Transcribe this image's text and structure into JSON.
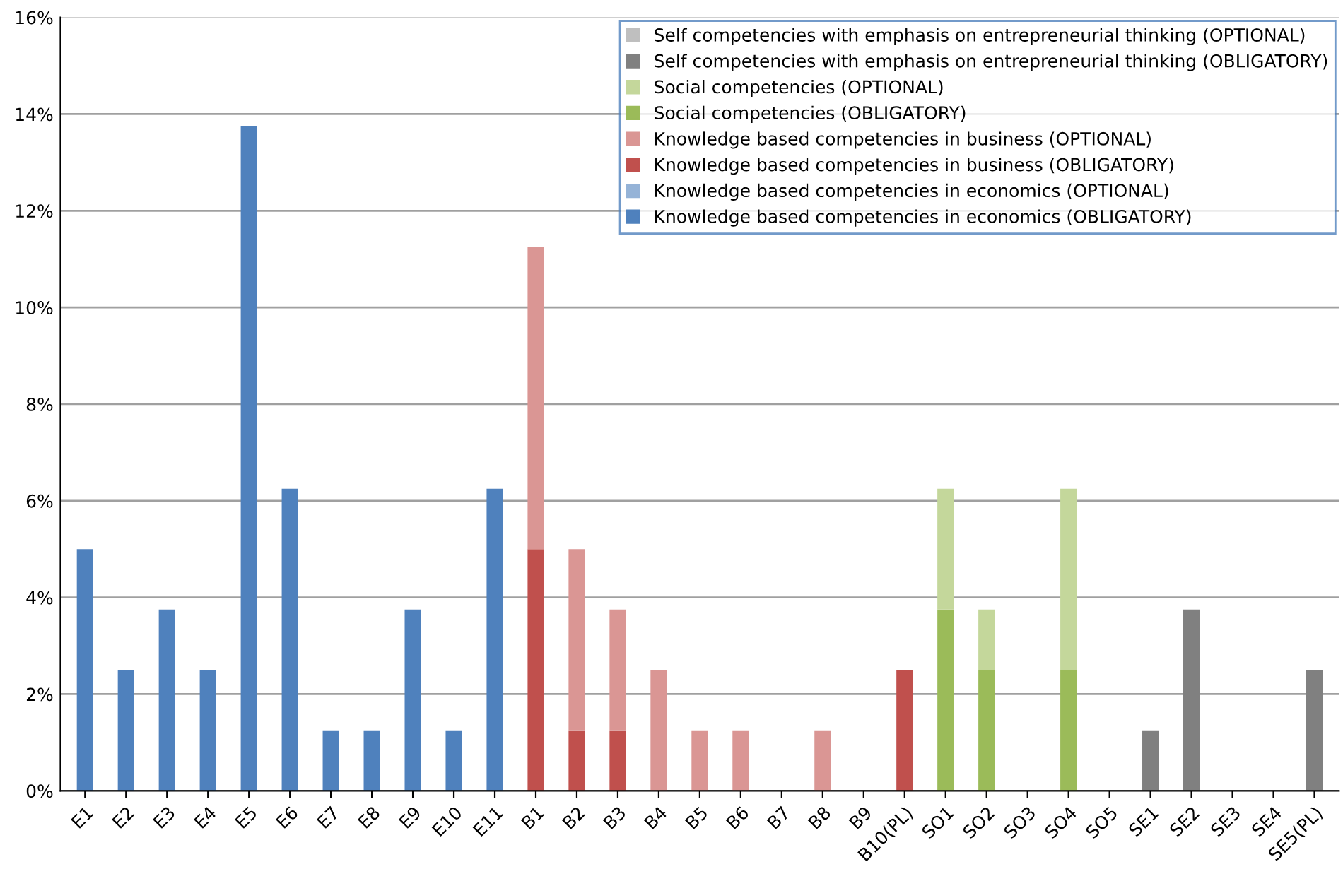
{
  "chart_data": {
    "type": "bar",
    "stacked": true,
    "categories": [
      "E1",
      "E2",
      "E3",
      "E4",
      "E5",
      "E6",
      "E7",
      "E8",
      "E9",
      "E10",
      "E11",
      "B1",
      "B2",
      "B3",
      "B4",
      "B5",
      "B6",
      "B7",
      "B8",
      "B9",
      "B10(PL)",
      "SO1",
      "SO2",
      "SO3",
      "SO4",
      "SO5",
      "SE1",
      "SE2",
      "SE3",
      "SE4",
      "SE5(PL)"
    ],
    "series": [
      {
        "name": "Knowledge based competencies in economics (OBLIGATORY)",
        "color": "#4f81bd",
        "values": [
          5,
          2.5,
          3.75,
          2.5,
          13.75,
          6.25,
          1.25,
          1.25,
          3.75,
          1.25,
          6.25,
          null,
          null,
          null,
          null,
          null,
          null,
          null,
          null,
          null,
          null,
          null,
          null,
          null,
          null,
          null,
          null,
          null,
          null,
          null,
          null
        ]
      },
      {
        "name": "Knowledge based competencies in economics (OPTIONAL)",
        "color": "#95b3d7",
        "values": [
          null,
          null,
          null,
          null,
          null,
          null,
          null,
          null,
          null,
          null,
          null,
          null,
          null,
          null,
          null,
          null,
          null,
          null,
          null,
          null,
          null,
          null,
          null,
          null,
          null,
          null,
          null,
          null,
          null,
          null,
          null
        ]
      },
      {
        "name": "Knowledge based competencies in business (OBLIGATORY)",
        "color": "#c0504d",
        "values": [
          null,
          null,
          null,
          null,
          null,
          null,
          null,
          null,
          null,
          null,
          null,
          5,
          1.25,
          1.25,
          null,
          null,
          null,
          null,
          null,
          null,
          2.5,
          null,
          null,
          null,
          null,
          null,
          null,
          null,
          null,
          null,
          null
        ]
      },
      {
        "name": "Knowledge based competencies in business (OPTIONAL)",
        "color": "#da9694",
        "values": [
          null,
          null,
          null,
          null,
          null,
          null,
          null,
          null,
          null,
          null,
          null,
          6.25,
          3.75,
          2.5,
          2.5,
          1.25,
          1.25,
          null,
          1.25,
          null,
          null,
          null,
          null,
          null,
          null,
          null,
          null,
          null,
          null,
          null,
          null
        ]
      },
      {
        "name": "Social competencies (OBLIGATORY)",
        "color": "#9bbb59",
        "values": [
          null,
          null,
          null,
          null,
          null,
          null,
          null,
          null,
          null,
          null,
          null,
          null,
          null,
          null,
          null,
          null,
          null,
          null,
          null,
          null,
          null,
          3.75,
          2.5,
          null,
          2.5,
          null,
          null,
          null,
          null,
          null,
          null
        ]
      },
      {
        "name": "Social competencies (OPTIONAL)",
        "color": "#c4d79b",
        "values": [
          null,
          null,
          null,
          null,
          null,
          null,
          null,
          null,
          null,
          null,
          null,
          null,
          null,
          null,
          null,
          null,
          null,
          null,
          null,
          null,
          null,
          2.5,
          1.25,
          null,
          3.75,
          null,
          null,
          null,
          null,
          null,
          null
        ]
      },
      {
        "name": "Self competencies with emphasis on entrepreneurial thinking (OBLIGATORY)",
        "color": "#808080",
        "values": [
          null,
          null,
          null,
          null,
          null,
          null,
          null,
          null,
          null,
          null,
          null,
          null,
          null,
          null,
          null,
          null,
          null,
          null,
          null,
          null,
          null,
          null,
          null,
          null,
          null,
          null,
          1.25,
          3.75,
          null,
          null,
          2.5
        ]
      },
      {
        "name": "Self competencies with emphasis on entrepreneurial thinking (OPTIONAL)",
        "color": "#bfbfbf",
        "values": [
          null,
          null,
          null,
          null,
          null,
          null,
          null,
          null,
          null,
          null,
          null,
          null,
          null,
          null,
          null,
          null,
          null,
          null,
          null,
          null,
          null,
          null,
          null,
          null,
          null,
          null,
          null,
          null,
          null,
          null,
          null
        ]
      }
    ],
    "ylim": [
      0,
      16
    ],
    "yticks": [
      {
        "value": 0,
        "label": "0%"
      },
      {
        "value": 2,
        "label": "2%"
      },
      {
        "value": 4,
        "label": "4%"
      },
      {
        "value": 6,
        "label": "6%"
      },
      {
        "value": 8,
        "label": "8%"
      },
      {
        "value": 10,
        "label": "10%"
      },
      {
        "value": 12,
        "label": "12%"
      },
      {
        "value": 14,
        "label": "14%"
      },
      {
        "value": 16,
        "label": "16%"
      }
    ],
    "grid": "y",
    "legend": "top right"
  }
}
